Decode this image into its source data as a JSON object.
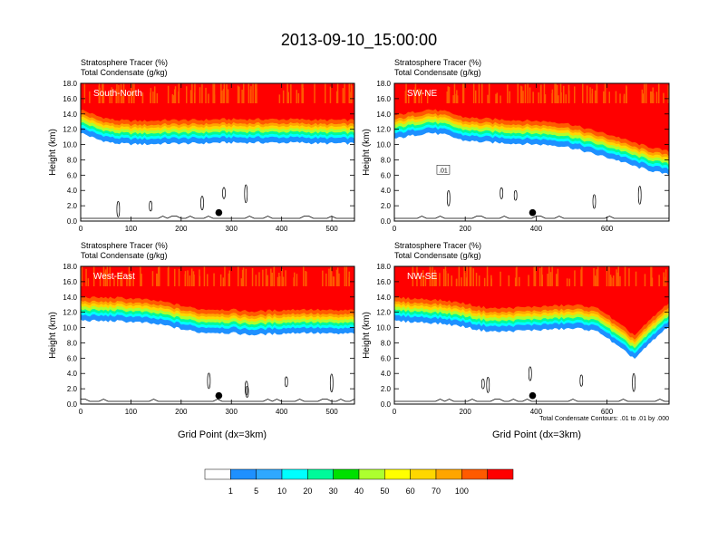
{
  "title": "2013-09-10_15:00:00",
  "panel_header": {
    "line1": "Stratosphere Tracer   (%)",
    "line2": "Total Condensate   (g/kg)"
  },
  "ylabel": "Height (km)",
  "xlabel": "Grid Point (dx=3km)",
  "contour_note": "Total Condensate Contours: .01 to .01 by .000",
  "colors": [
    "#ffffff",
    "#1e90ff",
    "#2fa8ff",
    "#00ffff",
    "#00fa9a",
    "#00e000",
    "#adff2f",
    "#ffff00",
    "#ffd700",
    "#ffa500",
    "#ff5a00",
    "#ff0000"
  ],
  "chart_data": [
    {
      "type": "heatmap",
      "name": "South-North",
      "xlim": [
        0,
        545
      ],
      "ylim": [
        0,
        18
      ],
      "xticks": [
        0,
        100,
        200,
        300,
        400,
        500
      ],
      "yticks": [
        "0.0",
        "2.0",
        "4.0",
        "6.0",
        "8.0",
        "10.0",
        "12.0",
        "14.0",
        "16.0",
        "18.0"
      ],
      "marker": {
        "x": 275,
        "y": 1.1
      },
      "tracer_top_km": [
        14.6,
        13.7,
        13.2,
        13.1,
        13.1,
        13.2,
        13.2,
        13.2,
        13.3,
        13.3,
        13.3,
        13.3,
        13.3,
        13.3,
        13.2,
        13.2,
        13.2
      ]
    },
    {
      "type": "heatmap",
      "name": "SW-NE",
      "xlim": [
        0,
        775
      ],
      "ylim": [
        0,
        18
      ],
      "xticks": [
        0,
        200,
        400,
        600
      ],
      "yticks": [
        "0.0",
        "2.0",
        "4.0",
        "6.0",
        "8.0",
        "10.0",
        "12.0",
        "14.0",
        "16.0",
        "18.0"
      ],
      "marker": {
        "x": 390,
        "y": 1.1
      },
      "contour_label": ".01",
      "tracer_top_km": [
        13.8,
        14.2,
        14.6,
        14.3,
        13.6,
        13.4,
        13.3,
        13.2,
        13.1,
        13.0,
        12.8,
        12.2,
        11.6,
        11.0,
        10.2,
        9.6,
        9.1
      ]
    },
    {
      "type": "heatmap",
      "name": "West-East",
      "xlim": [
        0,
        545
      ],
      "ylim": [
        0,
        18
      ],
      "xticks": [
        0,
        100,
        200,
        300,
        400,
        500
      ],
      "yticks": [
        "0.0",
        "2.0",
        "4.0",
        "6.0",
        "8.0",
        "10.0",
        "12.0",
        "14.0",
        "16.0",
        "18.0"
      ],
      "marker": {
        "x": 275,
        "y": 1.1
      },
      "tracer_top_km": [
        14.0,
        13.9,
        13.9,
        13.8,
        13.6,
        13.3,
        12.8,
        12.4,
        12.4,
        12.3,
        12.1,
        12.2,
        12.3,
        12.4,
        12.3,
        12.2,
        12.3
      ]
    },
    {
      "type": "heatmap",
      "name": "NW-SE",
      "xlim": [
        0,
        775
      ],
      "ylim": [
        0,
        18
      ],
      "xticks": [
        0,
        200,
        400,
        600
      ],
      "yticks": [
        "0.0",
        "2.0",
        "4.0",
        "6.0",
        "8.0",
        "10.0",
        "12.0",
        "14.0",
        "16.0",
        "18.0"
      ],
      "marker": {
        "x": 390,
        "y": 1.1
      },
      "tracer_top_km": [
        13.9,
        13.8,
        13.7,
        13.5,
        13.2,
        12.7,
        12.5,
        12.6,
        12.7,
        12.8,
        12.9,
        12.9,
        12.4,
        10.6,
        9.0,
        11.2,
        13.3
      ]
    }
  ],
  "colorbar": {
    "labels": [
      "1",
      "5",
      "10",
      "20",
      "30",
      "40",
      "50",
      "60",
      "70",
      "100"
    ]
  }
}
